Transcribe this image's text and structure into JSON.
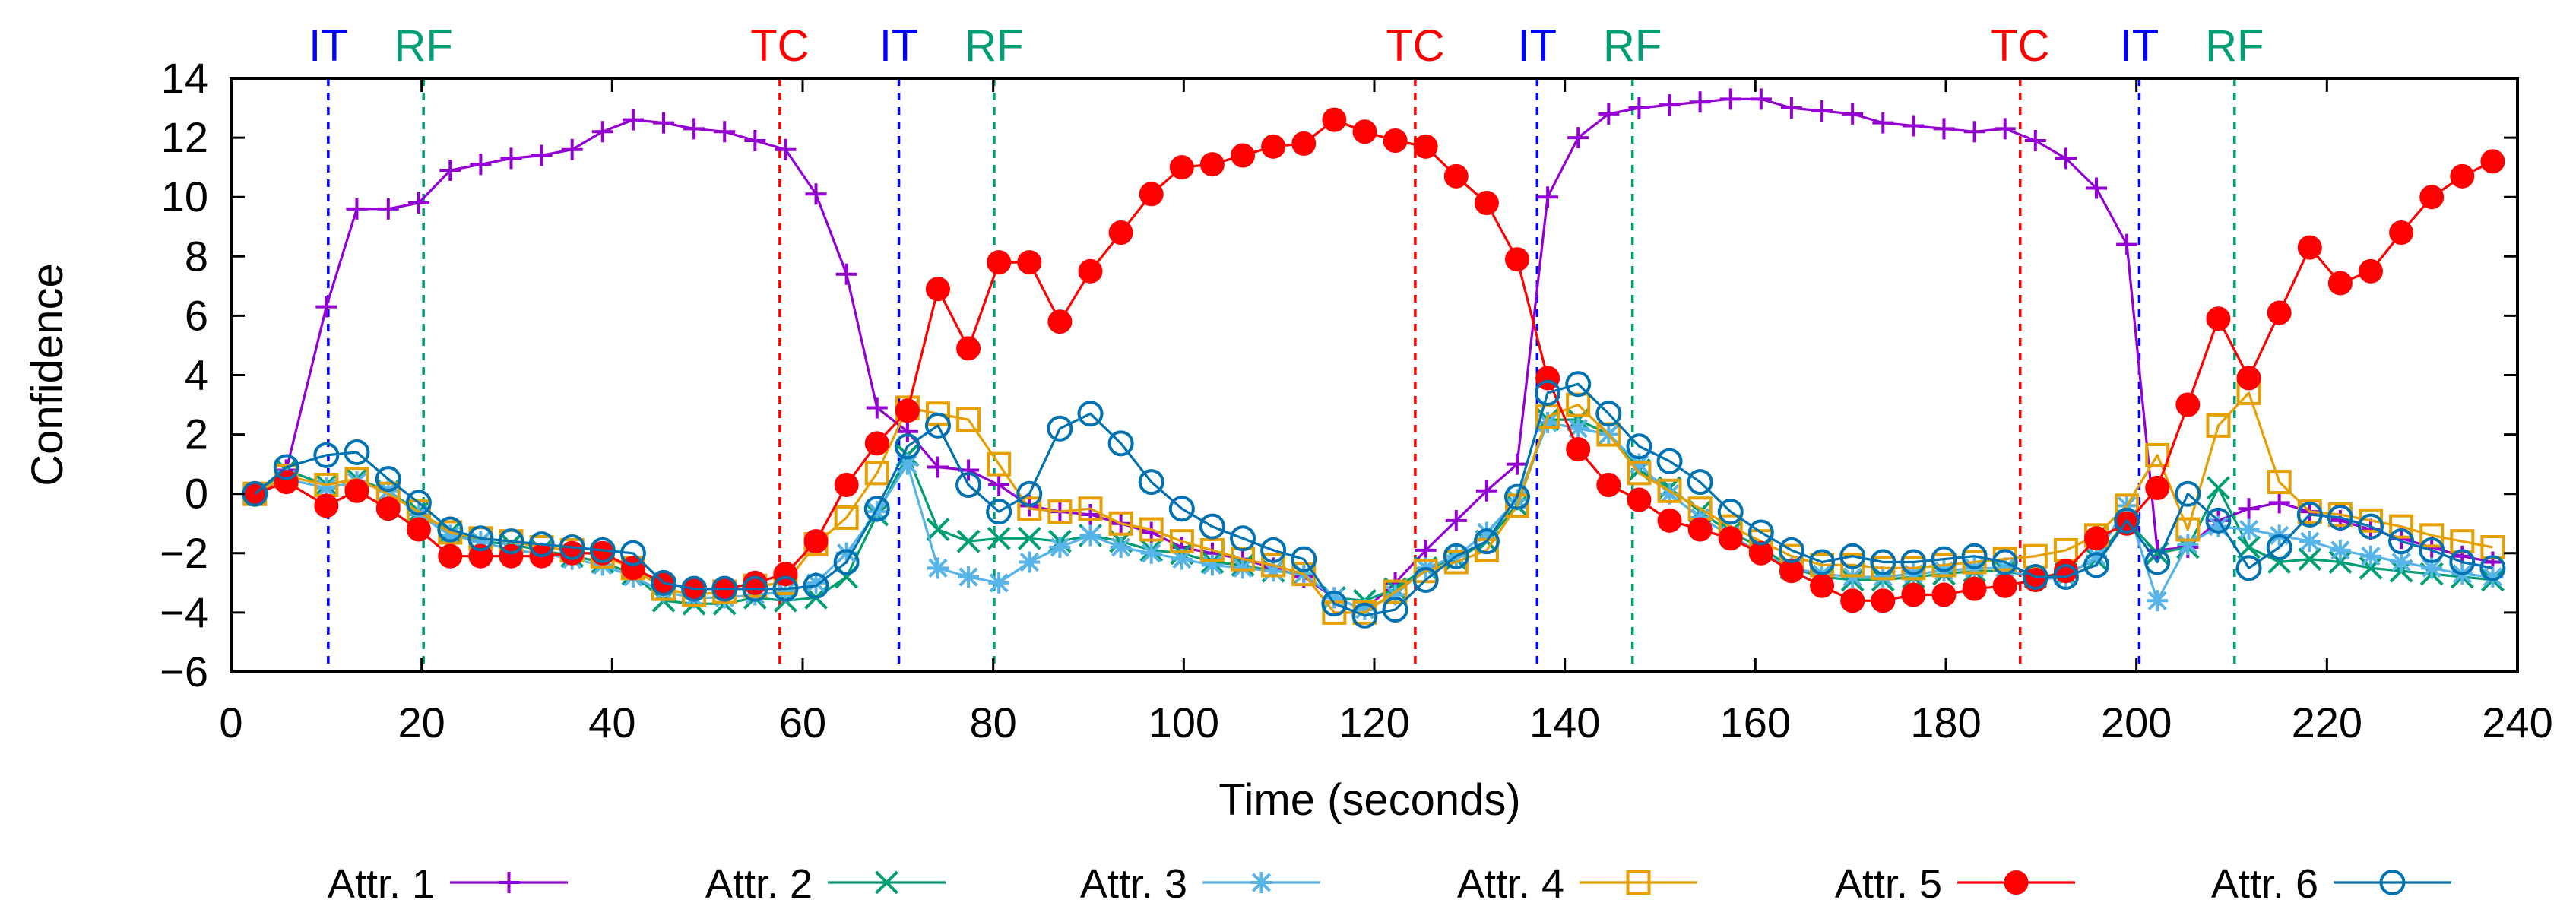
{
  "chart_data": {
    "type": "line",
    "title": "",
    "xlabel": "Time (seconds)",
    "ylabel": "Confidence",
    "xlim": [
      0,
      240
    ],
    "ylim": [
      -6,
      14
    ],
    "xticks": [
      0,
      20,
      40,
      60,
      80,
      100,
      120,
      140,
      160,
      180,
      200,
      220,
      240
    ],
    "yticks": [
      -6,
      -4,
      -2,
      0,
      2,
      4,
      6,
      8,
      10,
      12,
      14
    ],
    "grid": false,
    "legend_position": "bottom",
    "x": [
      2.5,
      5.8,
      10,
      13.2,
      16.5,
      19.7,
      23,
      26.2,
      29.4,
      32.6,
      35.8,
      39,
      42.2,
      45.4,
      48.6,
      51.8,
      55,
      58.2,
      61.4,
      64.6,
      67.8,
      71,
      74.2,
      77.4,
      80.6,
      83.8,
      87,
      90.2,
      93.4,
      96.6,
      99.8,
      103,
      106.2,
      109.4,
      112.6,
      115.8,
      119,
      122.2,
      125.4,
      128.6,
      131.8,
      135,
      138.2,
      141.4,
      144.6,
      147.8,
      151,
      154.2,
      157.4,
      160.6,
      163.8,
      167,
      170.2,
      173.4,
      176.6,
      179.8,
      183,
      186.2,
      189.4,
      192.6,
      195.8,
      199,
      202.2,
      205.4,
      208.6,
      211.8,
      215,
      218.2,
      221.4,
      224.6,
      227.8,
      231,
      234.2,
      237.4
    ],
    "series": [
      {
        "name": "Attr. 1",
        "color": "#9400d3",
        "marker": "plus",
        "values": [
          0,
          0.8,
          6.3,
          9.6,
          9.6,
          9.8,
          10.9,
          11.1,
          11.3,
          11.4,
          11.6,
          12.2,
          12.6,
          12.5,
          12.3,
          12.2,
          11.9,
          11.6,
          10.1,
          7.4,
          2.9,
          2.1,
          0.9,
          0.8,
          0.3,
          -0.4,
          -0.6,
          -0.7,
          -1.0,
          -1.3,
          -1.8,
          -2.0,
          -2.2,
          -2.5,
          -2.8,
          -3.5,
          -3.9,
          -3.0,
          -1.9,
          -0.9,
          0.1,
          1.0,
          10.0,
          12.0,
          12.8,
          13.0,
          13.1,
          13.2,
          13.3,
          13.3,
          13.0,
          12.9,
          12.8,
          12.5,
          12.4,
          12.3,
          12.2,
          12.3,
          11.9,
          11.3,
          10.3,
          8.4,
          -1.9,
          -1.8,
          -0.9,
          -0.5,
          -0.3,
          -0.6,
          -0.9,
          -1.2,
          -1.5,
          -1.8,
          -2.1,
          -2.3
        ]
      },
      {
        "name": "Attr. 2",
        "color": "#009e73",
        "marker": "x",
        "values": [
          0,
          0.8,
          0.3,
          0.5,
          0.1,
          -0.6,
          -1.3,
          -1.6,
          -1.7,
          -1.9,
          -2.1,
          -2.3,
          -2.7,
          -3.6,
          -3.7,
          -3.7,
          -3.5,
          -3.6,
          -3.5,
          -2.8,
          -0.7,
          1.3,
          -1.2,
          -1.6,
          -1.5,
          -1.5,
          -1.6,
          -1.4,
          -1.6,
          -1.9,
          -2.0,
          -2.3,
          -2.4,
          -2.6,
          -2.7,
          -3.5,
          -3.6,
          -3.2,
          -2.5,
          -2.2,
          -1.6,
          -0.4,
          2.5,
          2.5,
          2.0,
          0.8,
          0.2,
          -0.6,
          -1.3,
          -1.8,
          -2.5,
          -2.8,
          -2.9,
          -2.9,
          -2.8,
          -2.7,
          -2.6,
          -2.6,
          -2.8,
          -2.7,
          -2.2,
          -0.9,
          -2.0,
          -1.8,
          0.2,
          -1.8,
          -2.3,
          -2.2,
          -2.3,
          -2.5,
          -2.6,
          -2.7,
          -2.8,
          -2.9
        ]
      },
      {
        "name": "Attr. 3",
        "color": "#56b4e9",
        "marker": "star",
        "values": [
          0,
          0.5,
          0.2,
          0.4,
          0.1,
          -0.7,
          -1.4,
          -1.6,
          -1.9,
          -2.0,
          -2.2,
          -2.4,
          -2.8,
          -3.3,
          -3.5,
          -3.5,
          -3.4,
          -3.3,
          -3.0,
          -2.0,
          -0.6,
          1.0,
          -2.5,
          -2.8,
          -3.0,
          -2.3,
          -1.8,
          -1.4,
          -1.8,
          -2.0,
          -2.2,
          -2.4,
          -2.5,
          -2.6,
          -2.7,
          -3.5,
          -3.9,
          -3.4,
          -2.5,
          -2.1,
          -1.3,
          -0.2,
          2.4,
          2.2,
          2.0,
          1.0,
          0.0,
          -0.8,
          -1.4,
          -2.0,
          -2.5,
          -2.7,
          -2.8,
          -2.8,
          -2.7,
          -2.6,
          -2.5,
          -2.5,
          -2.9,
          -2.8,
          -2.1,
          -0.4,
          -3.6,
          -1.7,
          -1.1,
          -1.2,
          -1.4,
          -1.6,
          -1.9,
          -2.1,
          -2.3,
          -2.5,
          -2.7,
          -2.8
        ]
      },
      {
        "name": "Attr. 4",
        "color": "#e69f00",
        "marker": "square",
        "values": [
          0,
          0.6,
          0.3,
          0.5,
          0.0,
          -0.6,
          -1.3,
          -1.5,
          -1.6,
          -1.8,
          -1.9,
          -2.1,
          -2.5,
          -3.2,
          -3.4,
          -3.3,
          -3.1,
          -3.0,
          -1.7,
          -0.8,
          0.7,
          2.9,
          2.7,
          2.5,
          1.0,
          -0.5,
          -0.6,
          -0.5,
          -1.0,
          -1.2,
          -1.6,
          -1.9,
          -2.2,
          -2.4,
          -2.7,
          -4.0,
          -4.0,
          -3.3,
          -2.6,
          -2.3,
          -1.9,
          -0.4,
          2.6,
          3.0,
          2.0,
          0.7,
          0.1,
          -0.5,
          -1.1,
          -1.6,
          -2.1,
          -2.4,
          -2.4,
          -2.5,
          -2.5,
          -2.4,
          -2.3,
          -2.2,
          -2.1,
          -1.9,
          -1.4,
          -0.4,
          1.3,
          -1.2,
          2.3,
          3.4,
          0.4,
          -0.6,
          -0.7,
          -0.9,
          -1.1,
          -1.4,
          -1.6,
          -1.8
        ]
      },
      {
        "name": "Attr. 5",
        "color": "#ff0000",
        "marker": "circle-filled",
        "values": [
          0,
          0.4,
          -0.4,
          0.1,
          -0.5,
          -1.2,
          -2.1,
          -2.1,
          -2.1,
          -2.1,
          -2.0,
          -2.0,
          -2.5,
          -3.0,
          -3.2,
          -3.2,
          -3.0,
          -2.7,
          -1.6,
          0.3,
          1.7,
          2.8,
          6.9,
          4.9,
          7.8,
          7.8,
          5.8,
          7.5,
          8.8,
          10.1,
          11.0,
          11.1,
          11.4,
          11.7,
          11.8,
          12.6,
          12.2,
          11.9,
          11.7,
          10.7,
          9.8,
          7.9,
          3.9,
          1.5,
          0.3,
          -0.2,
          -0.9,
          -1.2,
          -1.5,
          -2.0,
          -2.6,
          -3.1,
          -3.6,
          -3.6,
          -3.4,
          -3.4,
          -3.2,
          -3.1,
          -2.9,
          -2.6,
          -1.5,
          -1.0,
          0.2,
          3.0,
          5.9,
          3.9,
          6.1,
          8.3,
          7.1,
          7.5,
          8.8,
          10.0,
          10.7,
          11.2
        ]
      },
      {
        "name": "Attr. 6",
        "color": "#0072b2",
        "marker": "circle-open",
        "values": [
          0,
          0.9,
          1.3,
          1.4,
          0.5,
          -0.3,
          -1.2,
          -1.5,
          -1.6,
          -1.7,
          -1.8,
          -1.9,
          -2.0,
          -3.0,
          -3.2,
          -3.2,
          -3.2,
          -3.2,
          -3.1,
          -2.3,
          -0.5,
          1.6,
          2.3,
          0.3,
          -0.6,
          0.0,
          2.2,
          2.7,
          1.7,
          0.4,
          -0.5,
          -1.1,
          -1.5,
          -1.9,
          -2.2,
          -3.7,
          -4.1,
          -3.9,
          -2.9,
          -2.1,
          -1.6,
          -0.1,
          3.4,
          3.7,
          2.7,
          1.6,
          1.1,
          0.4,
          -0.6,
          -1.3,
          -1.9,
          -2.3,
          -2.1,
          -2.3,
          -2.3,
          -2.2,
          -2.1,
          -2.3,
          -2.8,
          -2.8,
          -2.4,
          -0.9,
          -2.3,
          0.0,
          -0.9,
          -2.5,
          -1.8,
          -0.7,
          -0.8,
          -1.1,
          -1.6,
          -1.9,
          -2.3,
          -2.5
        ]
      }
    ],
    "annotations": [
      {
        "label": "IT",
        "x": 10.2,
        "color": "#0000ff"
      },
      {
        "label": "RF",
        "x": 20.2,
        "color": "#009e73"
      },
      {
        "label": "TC",
        "x": 57.6,
        "color": "#ff0000"
      },
      {
        "label": "IT",
        "x": 70.1,
        "color": "#0000ff"
      },
      {
        "label": "RF",
        "x": 80.1,
        "color": "#009e73"
      },
      {
        "label": "TC",
        "x": 124.3,
        "color": "#ff0000"
      },
      {
        "label": "IT",
        "x": 137.1,
        "color": "#0000ff"
      },
      {
        "label": "RF",
        "x": 147.1,
        "color": "#009e73"
      },
      {
        "label": "TC",
        "x": 187.8,
        "color": "#ff0000"
      },
      {
        "label": "IT",
        "x": 200.3,
        "color": "#0000ff"
      },
      {
        "label": "RF",
        "x": 210.3,
        "color": "#009e73"
      }
    ]
  }
}
